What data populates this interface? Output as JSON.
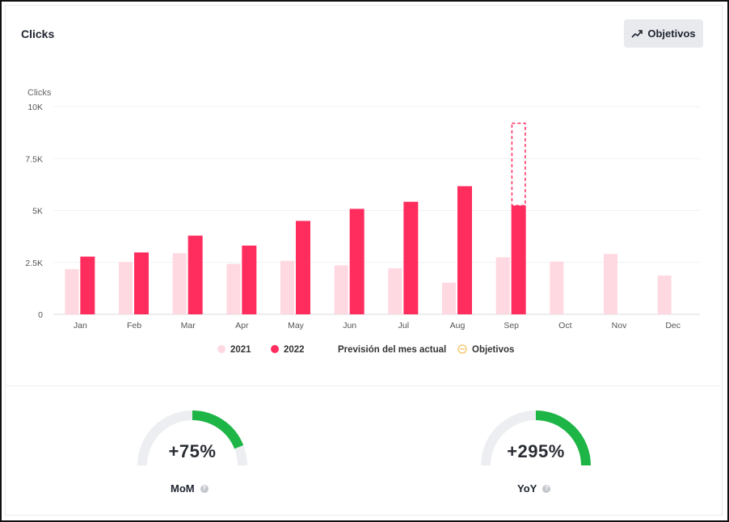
{
  "card": {
    "title": "Clicks",
    "objectives_button": "Objetivos"
  },
  "chart_data": {
    "type": "bar",
    "ylabel": "Clicks",
    "ylim": [
      0,
      10000
    ],
    "yticks": [
      0,
      2500,
      5000,
      7500,
      10000
    ],
    "ytick_labels": [
      "0",
      "2.5K",
      "5K",
      "7.5K",
      "10K"
    ],
    "categories": [
      "Jan",
      "Feb",
      "Mar",
      "Apr",
      "May",
      "Jun",
      "Jul",
      "Aug",
      "Sep",
      "Oct",
      "Nov",
      "Dec"
    ],
    "series": [
      {
        "name": "2021",
        "color": "#ffd9e1",
        "values": [
          2180,
          2520,
          2940,
          2430,
          2580,
          2360,
          2220,
          1520,
          2750,
          2540,
          2910,
          1870
        ]
      },
      {
        "name": "2022",
        "color": "#ff2d5e",
        "values": [
          2780,
          2980,
          3790,
          3310,
          4500,
          5080,
          5420,
          6170,
          5240,
          null,
          null,
          null
        ]
      }
    ],
    "forecast": {
      "name": "Previsión del mes actual",
      "category": "Sep",
      "value": 9200,
      "color": "#ff2d5e"
    },
    "objectives_legend": "Objetivos",
    "grid": true,
    "legend_position": "bottom"
  },
  "gauges": [
    {
      "value": "+75%",
      "label": "MoM",
      "fraction": 0.38
    },
    {
      "value": "+295%",
      "label": "YoY",
      "fraction": 0.5
    }
  ],
  "colors": {
    "accent": "#ff2d5e",
    "accent_light": "#ffd9e1",
    "gauge_fill": "#1db546",
    "gauge_track": "#eceef1"
  }
}
